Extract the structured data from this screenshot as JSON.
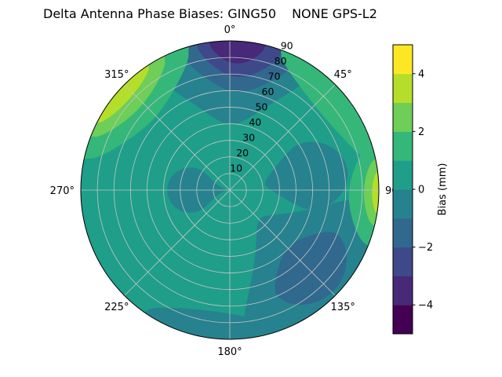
{
  "title": {
    "main": "Delta Antenna Phase Biases: GING50",
    "right": "NONE GPS-L2"
  },
  "chart_data": {
    "type": "polar_filled_contour",
    "title": "Delta Antenna Phase Biases: GING50",
    "subtitle": "NONE GPS-L2",
    "background": "#ffffff",
    "grid_color": "#c6c6c6",
    "spine_color": "#000000",
    "angular_axis": {
      "direction": "clockwise",
      "zero_location": "top",
      "tick_angles": [
        0,
        45,
        90,
        135,
        180,
        225,
        270,
        315
      ],
      "tick_labels": [
        "0°",
        "45°",
        "90°",
        "135°",
        "180°",
        "225°",
        "270°",
        "315°"
      ]
    },
    "radial_axis": {
      "tick_values": [
        10,
        20,
        30,
        40,
        50,
        60,
        70,
        80,
        90
      ],
      "max": 90,
      "label_angle_deg": 22.5
    },
    "colorbar": {
      "label": "Bias (mm)",
      "min": -5,
      "max": 5,
      "tick_values": [
        -4,
        -2,
        0,
        2,
        4
      ],
      "tick_labels": [
        "−4",
        "−2",
        "0",
        "2",
        "4"
      ],
      "band_colors": [
        "#440154",
        "#482878",
        "#3e4989",
        "#31688e",
        "#26828e",
        "#1f9e89",
        "#35b779",
        "#6ece58",
        "#b5de2b",
        "#fde725"
      ]
    },
    "base": {
      "bias_band_mm": [
        0,
        1
      ],
      "color": "#1f9e89"
    },
    "regions": [
      {
        "bias_band_mm": [
          -1,
          0
        ],
        "color": "#26828e",
        "az_start": 326,
        "az_end": 396,
        "r_start": 0.44,
        "r_end": 1.0
      },
      {
        "bias_band_mm": [
          -2,
          -1
        ],
        "color": "#31688e",
        "az_start": 340,
        "az_end": 388,
        "r_start": 0.66,
        "r_end": 1.0
      },
      {
        "bias_band_mm": [
          -3,
          -2
        ],
        "color": "#3e4989",
        "az_start": 347,
        "az_end": 381,
        "r_start": 0.76,
        "r_end": 1.0
      },
      {
        "bias_band_mm": [
          -4,
          -3
        ],
        "color": "#482878",
        "az_start": 352,
        "az_end": 374,
        "r_start": 0.85,
        "r_end": 1.0
      },
      {
        "bias_band_mm": [
          -1,
          0
        ],
        "color": "#26828e",
        "az_start": 56,
        "az_end": 104,
        "r_start": 0.24,
        "r_end": 0.8
      },
      {
        "bias_band_mm": [
          -1,
          0
        ],
        "color": "#26828e",
        "az_start": 92,
        "az_end": 175,
        "r_start": 0.28,
        "r_end": 1.0
      },
      {
        "bias_band_mm": [
          -2,
          -1
        ],
        "color": "#31688e",
        "az_start": 112,
        "az_end": 156,
        "r_start": 0.55,
        "r_end": 0.97
      },
      {
        "bias_band_mm": [
          -1,
          0
        ],
        "color": "#26828e",
        "az_start": 160,
        "az_end": 215,
        "r_start": 0.82,
        "r_end": 1.0
      },
      {
        "bias_band_mm": [
          -1,
          0
        ],
        "color": "#26828e",
        "az_start": 235,
        "az_end": 305,
        "r_start": 0.02,
        "r_end": 0.42
      },
      {
        "bias_band_mm": [
          1,
          2
        ],
        "color": "#35b779",
        "az_start": 20,
        "az_end": 80,
        "r_start": 0.8,
        "r_end": 1.0
      },
      {
        "bias_band_mm": [
          1,
          2
        ],
        "color": "#35b779",
        "az_start": 72,
        "az_end": 112,
        "r_start": 0.8,
        "r_end": 1.0
      },
      {
        "bias_band_mm": [
          2,
          3
        ],
        "color": "#6ece58",
        "az_start": 78,
        "az_end": 104,
        "r_start": 0.9,
        "r_end": 1.0
      },
      {
        "bias_band_mm": [
          3,
          4
        ],
        "color": "#b5de2b",
        "az_start": 83,
        "az_end": 99,
        "r_start": 0.955,
        "r_end": 1.0
      },
      {
        "bias_band_mm": [
          1,
          2
        ],
        "color": "#35b779",
        "az_start": 282,
        "az_end": 344,
        "r_start": 0.7,
        "r_end": 1.0
      },
      {
        "bias_band_mm": [
          2,
          3
        ],
        "color": "#6ece58",
        "az_start": 291,
        "az_end": 334,
        "r_start": 0.82,
        "r_end": 1.0
      },
      {
        "bias_band_mm": [
          3,
          4
        ],
        "color": "#b5de2b",
        "az_start": 297,
        "az_end": 327,
        "r_start": 0.91,
        "r_end": 1.0
      }
    ]
  }
}
